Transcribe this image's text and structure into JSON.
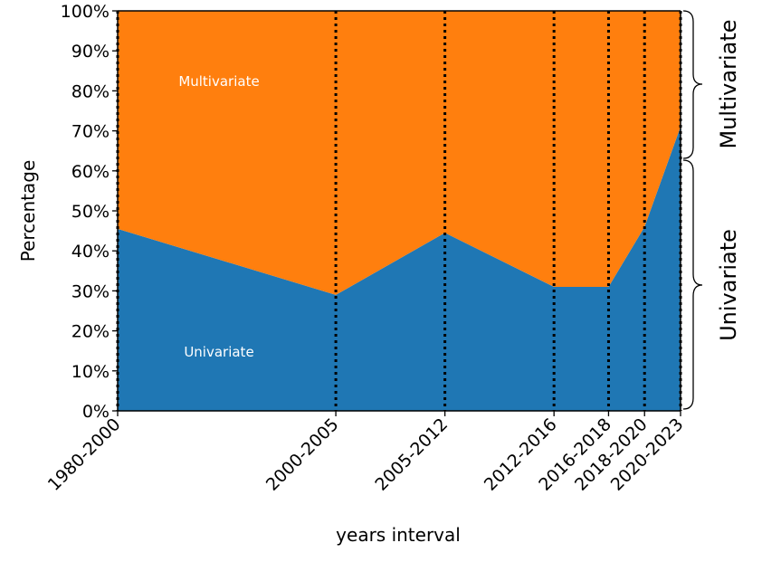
{
  "chart_data": {
    "type": "area",
    "stacked": true,
    "normalized": true,
    "categories": [
      "1980-2000",
      "2000-2005",
      "2005-2012",
      "2012-2016",
      "2016-2018",
      "2018-2020",
      "2020-2023"
    ],
    "x_positions": [
      1980,
      2000,
      2010,
      2020,
      2025,
      2028.3,
      2031.6
    ],
    "series": [
      {
        "name": "Univariate",
        "values": [
          45.5,
          29,
          44.5,
          31,
          31,
          46,
          71
        ],
        "color": "#1f77b4"
      },
      {
        "name": "Multivariate",
        "values": [
          54.5,
          71,
          55.5,
          69,
          69,
          54,
          29
        ],
        "color": "#ff7f0e"
      }
    ],
    "area_labels": [
      "Univariate",
      "Multivariate"
    ],
    "xlabel": "years interval",
    "ylabel": "Percentage",
    "ylim": [
      0,
      100
    ],
    "yticks": [
      0,
      10,
      20,
      30,
      40,
      50,
      60,
      70,
      80,
      90,
      100
    ],
    "ytick_labels": [
      "0%",
      "10%",
      "20%",
      "30%",
      "40%",
      "50%",
      "60%",
      "70%",
      "80%",
      "90%",
      "100%"
    ],
    "vertical_lines": "dotted at every category",
    "brace_labels": [
      {
        "label": "Multivariate",
        "range": [
          62,
          100
        ]
      },
      {
        "label": "Univariate",
        "range": [
          0,
          62
        ]
      }
    ]
  }
}
